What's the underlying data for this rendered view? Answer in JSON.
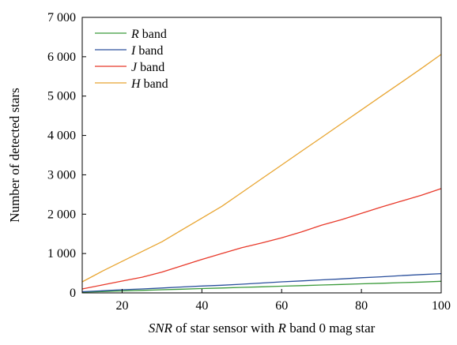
{
  "chart_data": {
    "type": "line",
    "title": "",
    "xlabel": {
      "prefix": "SNR",
      "middle": " of star sensor with ",
      "band": "R",
      "suffix": " band 0 mag star"
    },
    "ylabel": "Number of detected stars",
    "xlim": [
      10,
      100
    ],
    "ylim": [
      0,
      7000
    ],
    "xticks": [
      20,
      40,
      60,
      80,
      100
    ],
    "xtick_labels": [
      "20",
      "40",
      "60",
      "80",
      "100"
    ],
    "yticks": [
      0,
      1000,
      2000,
      3000,
      4000,
      5000,
      6000,
      7000
    ],
    "ytick_labels": [
      "0",
      "1 000",
      "2 000",
      "3 000",
      "4 000",
      "5 000",
      "6 000",
      "7 000"
    ],
    "grid": false,
    "legend_position": "top-left",
    "x": [
      10,
      15,
      20,
      25,
      30,
      35,
      40,
      45,
      50,
      55,
      60,
      65,
      70,
      75,
      80,
      85,
      90,
      95,
      100
    ],
    "series": [
      {
        "name": "R",
        "suffix": " band",
        "color": "#3a9a3a",
        "values": [
          20,
          35,
          50,
          65,
          80,
          95,
          110,
          125,
          140,
          155,
          170,
          185,
          200,
          215,
          230,
          245,
          260,
          275,
          295
        ]
      },
      {
        "name": "I",
        "suffix": " band",
        "color": "#2a4f9c",
        "values": [
          30,
          55,
          80,
          100,
          125,
          150,
          175,
          195,
          220,
          250,
          280,
          305,
          330,
          355,
          385,
          410,
          440,
          465,
          490
        ]
      },
      {
        "name": "J",
        "suffix": " band",
        "color": "#e8392a",
        "values": [
          100,
          200,
          300,
          400,
          530,
          690,
          850,
          1000,
          1150,
          1270,
          1400,
          1550,
          1720,
          1860,
          2020,
          2180,
          2330,
          2480,
          2650
        ]
      },
      {
        "name": "H",
        "suffix": " band",
        "color": "#e8a531",
        "values": [
          280,
          550,
          800,
          1050,
          1300,
          1600,
          1900,
          2200,
          2550,
          2900,
          3250,
          3600,
          3950,
          4300,
          4650,
          5000,
          5350,
          5700,
          6060
        ]
      }
    ]
  }
}
